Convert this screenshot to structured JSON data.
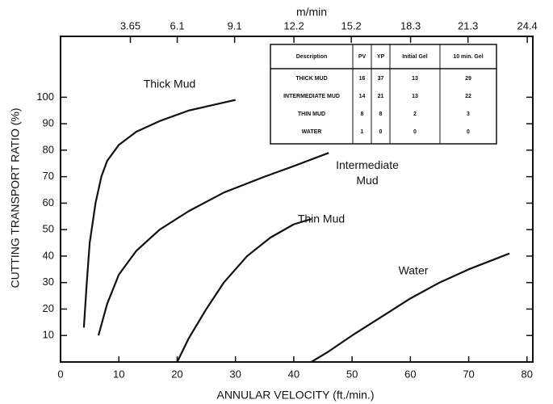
{
  "chart_data": {
    "type": "line",
    "x_axis_label": "ANNULAR VELOCITY (ft./min.)",
    "y_axis_label": "CUTTING TRANSPORT RATIO (%)",
    "x2_axis_label": "m/min",
    "xlim": [
      0,
      81
    ],
    "xticks": [
      0,
      10,
      20,
      30,
      40,
      50,
      60,
      70,
      80
    ],
    "x2lim": [
      0,
      24.69
    ],
    "x2ticks": [
      3.65,
      6.1,
      9.1,
      12.2,
      15.2,
      18.3,
      21.3,
      24.4
    ],
    "ylim": [
      0,
      123
    ],
    "yticks": [
      10,
      20,
      30,
      40,
      50,
      60,
      70,
      80,
      90,
      100
    ],
    "grid": false,
    "series": [
      {
        "name": "Thick Mud",
        "color": "#111111",
        "x": [
          4,
          4.5,
          5,
          6,
          7,
          8,
          10,
          13,
          17,
          22,
          26,
          30
        ],
        "values": [
          13,
          30,
          45,
          60,
          70,
          76,
          82,
          87,
          91,
          95,
          97,
          99
        ]
      },
      {
        "name": "Intermediate Mud",
        "color": "#111111",
        "x": [
          6.5,
          8,
          10,
          13,
          17,
          22,
          28,
          35,
          40,
          46
        ],
        "values": [
          10,
          22,
          33,
          42,
          50,
          57,
          64,
          70,
          74,
          79
        ]
      },
      {
        "name": "Thin Mud",
        "color": "#111111",
        "x": [
          20,
          22,
          25,
          28,
          32,
          36,
          40,
          43
        ],
        "values": [
          0,
          9,
          20,
          30,
          40,
          47,
          52,
          54
        ]
      },
      {
        "name": "Water",
        "color": "#111111",
        "x": [
          43,
          46,
          50,
          55,
          60,
          65,
          70,
          77
        ],
        "values": [
          0,
          4,
          10,
          17,
          24,
          30,
          35,
          41
        ]
      }
    ],
    "table": {
      "header": [
        "Description",
        "PV",
        "YP",
        "Initial Gel",
        "10 min. Gel"
      ],
      "rows": [
        [
          "THICK MUD",
          16,
          37,
          13,
          29
        ],
        [
          "INTERMEDIATE MUD",
          14,
          21,
          13,
          22
        ],
        [
          "THIN MUD",
          8,
          8,
          2,
          3
        ],
        [
          "WATER",
          1,
          0,
          0,
          0
        ]
      ]
    }
  }
}
